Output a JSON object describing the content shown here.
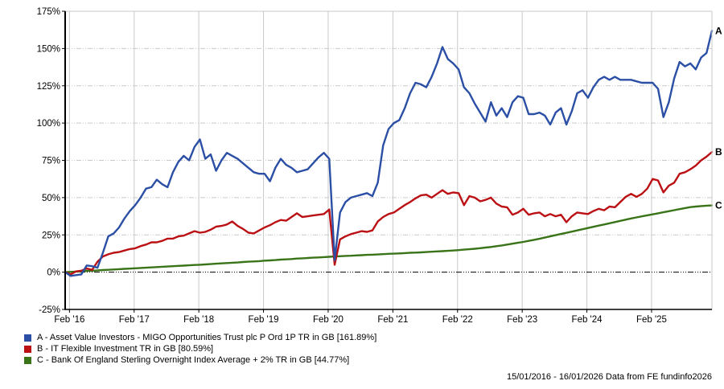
{
  "footer": {
    "text": "15/01/2016 - 16/01/2026 Data from FE fundinfo2026"
  },
  "chart_data": {
    "type": "line",
    "title": "",
    "grid": true,
    "legend_position": "bottom-left",
    "x_axis": {
      "start_date": "15/01/2016",
      "end_date": "16/01/2026",
      "tick_labels": [
        "Feb '16",
        "Feb '17",
        "Feb '18",
        "Feb '19",
        "Feb '20",
        "Feb '21",
        "Feb '22",
        "Feb '23",
        "Feb '24",
        "Feb '25"
      ]
    },
    "y_axis": {
      "min": -25,
      "max": 175,
      "step": 25,
      "unit": "%",
      "tick_labels": [
        "175%",
        "150%",
        "125%",
        "100%",
        "75%",
        "50%",
        "25%",
        "0%",
        "-25%"
      ]
    },
    "zero_line": 0,
    "x_unit": "monthly points from Jan 2016 to Jan 2026",
    "series": [
      {
        "id": "A",
        "end_label": "A",
        "legend_label": "A - Asset Value Investors - MIGO Opportunities Trust plc P Ord 1P TR in GB [161.89%]",
        "color": "#2b4fa5",
        "final_value": 161.89,
        "values": [
          0,
          -2.5,
          -2,
          -1.5,
          4.5,
          4,
          3,
          13,
          24,
          26,
          30,
          36,
          41,
          45,
          50,
          56,
          57,
          62,
          59,
          57,
          67,
          74,
          78,
          75,
          84,
          89,
          76,
          79,
          68,
          75,
          80,
          78,
          76,
          73,
          70,
          67,
          66,
          66,
          61,
          70,
          76,
          72,
          70,
          67,
          68,
          69,
          73,
          77,
          80,
          76,
          8,
          40,
          47,
          50,
          51,
          52,
          53,
          51,
          60,
          85,
          96,
          100,
          102,
          110,
          120,
          127,
          126,
          124,
          131,
          140,
          151,
          143,
          140,
          136,
          124,
          120,
          113,
          107,
          101,
          114,
          105,
          110,
          104,
          114,
          118,
          117,
          106,
          106,
          107,
          105,
          99,
          107,
          110,
          99,
          108,
          120,
          122,
          117,
          124,
          129,
          131,
          129,
          131,
          129,
          129,
          129,
          128,
          127,
          127,
          127,
          123,
          104,
          114,
          130,
          141,
          138,
          140,
          136,
          144,
          147,
          161.89
        ]
      },
      {
        "id": "B",
        "end_label": "B",
        "legend_label": "B - IT Flexible Investment TR in GB [80.59%]",
        "color": "#bb1014",
        "final_value": 80.59,
        "values": [
          0,
          -1.5,
          0.5,
          1,
          2.5,
          1.5,
          7,
          10.5,
          12,
          13,
          13.5,
          14.5,
          15.5,
          16,
          17.5,
          18.5,
          20,
          20,
          21,
          22.5,
          22.5,
          24,
          24.5,
          26,
          27.5,
          26.5,
          27,
          28.5,
          30.5,
          31,
          32,
          34,
          31,
          29,
          26.5,
          26,
          28,
          30,
          31.5,
          33.5,
          35,
          34.5,
          37,
          39.5,
          37,
          37.5,
          38,
          38.5,
          39,
          42,
          5,
          22,
          24,
          25.5,
          26.5,
          27.5,
          27,
          28,
          34,
          37,
          39,
          40,
          42.5,
          45,
          47,
          49.5,
          51.5,
          52,
          50,
          52.5,
          55,
          52.5,
          53.5,
          53,
          45,
          51,
          50,
          47.5,
          48.5,
          50,
          46,
          44,
          43.5,
          38.5,
          40,
          42.5,
          38.5,
          39.5,
          40,
          37.5,
          39,
          37.5,
          38.5,
          33.5,
          37.5,
          40,
          39.5,
          39,
          41,
          42.5,
          41.5,
          44,
          43.5,
          47,
          50.5,
          52.5,
          50.5,
          52.5,
          56,
          62.5,
          61.5,
          53.5,
          58,
          60,
          66,
          67,
          69,
          71.5,
          75,
          77.5,
          80.59
        ]
      },
      {
        "id": "C",
        "end_label": "C",
        "legend_label": "C - Bank Of England Sterling Overnight Index Average + 2% TR in GB [44.77%]",
        "color": "#3a7418",
        "final_value": 44.77,
        "values": [
          0,
          0.2,
          0.4,
          0.6,
          0.8,
          1.0,
          1.2,
          1.4,
          1.6,
          1.8,
          2.0,
          2.2,
          2.4,
          2.6,
          2.8,
          3.0,
          3.2,
          3.4,
          3.6,
          3.8,
          4.0,
          4.2,
          4.4,
          4.6,
          4.8,
          5.0,
          5.2,
          5.4,
          5.7,
          5.9,
          6.1,
          6.3,
          6.5,
          6.8,
          7.0,
          7.2,
          7.4,
          7.7,
          7.9,
          8.1,
          8.4,
          8.6,
          8.8,
          9.1,
          9.3,
          9.5,
          9.7,
          9.9,
          10.1,
          10.3,
          10.5,
          10.7,
          10.9,
          11.0,
          11.2,
          11.4,
          11.6,
          11.7,
          11.9,
          12.1,
          12.3,
          12.4,
          12.6,
          12.8,
          13.0,
          13.1,
          13.3,
          13.5,
          13.7,
          13.9,
          14.1,
          14.3,
          14.5,
          14.8,
          15.1,
          15.4,
          15.7,
          16.1,
          16.5,
          16.9,
          17.4,
          17.9,
          18.5,
          19.1,
          19.7,
          20.3,
          21.0,
          21.7,
          22.4,
          23.2,
          24.0,
          24.8,
          25.6,
          26.4,
          27.2,
          28.0,
          28.8,
          29.6,
          30.4,
          31.2,
          32.0,
          32.8,
          33.6,
          34.4,
          35.2,
          36.0,
          36.7,
          37.4,
          38.1,
          38.8,
          39.5,
          40.2,
          40.9,
          41.6,
          42.3,
          43.0,
          43.6,
          44.0,
          44.3,
          44.6,
          44.77
        ]
      }
    ],
    "colors": {
      "grid": "#c9c9c9",
      "axis": "#000000",
      "tick_text": "#000000"
    }
  }
}
